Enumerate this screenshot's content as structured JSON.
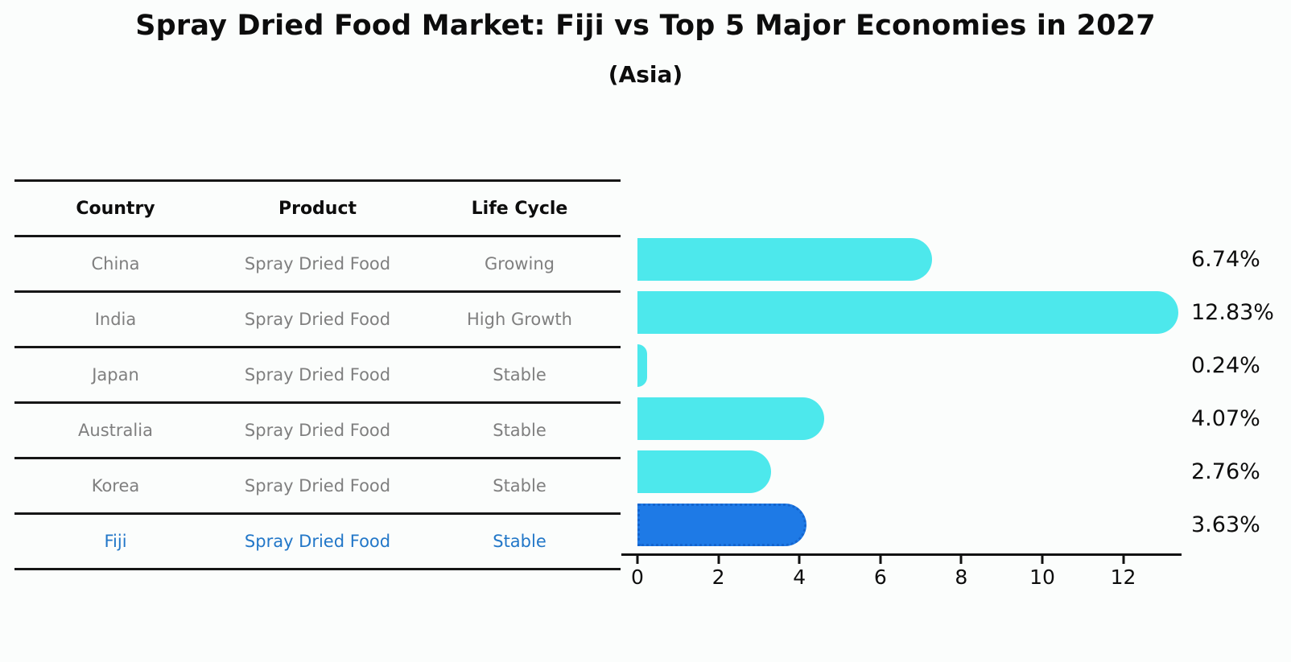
{
  "header": {
    "title": "Spray Dried Food Market: Fiji vs Top 5 Major Economies in 2027",
    "subtitle": "(Asia)"
  },
  "table": {
    "columns": [
      "Country",
      "Product",
      "Life Cycle"
    ],
    "rows": [
      {
        "country": "China",
        "product": "Spray Dried Food",
        "life_cycle": "Growing"
      },
      {
        "country": "India",
        "product": "Spray Dried Food",
        "life_cycle": "High Growth"
      },
      {
        "country": "Japan",
        "product": "Spray Dried Food",
        "life_cycle": "Stable"
      },
      {
        "country": "Australia",
        "product": "Spray Dried Food",
        "life_cycle": "Stable"
      },
      {
        "country": "Korea",
        "product": "Spray Dried Food",
        "life_cycle": "Stable"
      },
      {
        "country": "Fiji",
        "product": "Spray Dried Food",
        "life_cycle": "Stable"
      }
    ]
  },
  "chart_data": {
    "type": "bar",
    "orientation": "horizontal",
    "title": "Spray Dried Food Market: Fiji vs Top 5 Major Economies in 2027 (Asia)",
    "categories": [
      "China",
      "India",
      "Japan",
      "Australia",
      "Korea",
      "Fiji"
    ],
    "values": [
      6.74,
      12.83,
      0.24,
      4.07,
      2.76,
      3.63
    ],
    "labels": [
      "6.74%",
      "12.83%",
      "0.24%",
      "4.07%",
      "2.76%",
      "3.63%"
    ],
    "xticks": [
      0,
      2,
      4,
      6,
      8,
      10,
      12
    ],
    "xlim": [
      0,
      13.44
    ],
    "grid": false,
    "highlight_index": 5,
    "bar_color": "#4de8ec",
    "highlight_color": "#1e7ae6",
    "highlight_border_color": "#1465ce"
  },
  "colors": {
    "background": "#fbfdfc",
    "table_line": "#161616",
    "row_text_gray": "#7f7f7f",
    "highlight_text_blue": "#2277c8",
    "axis_black": "#111111"
  }
}
